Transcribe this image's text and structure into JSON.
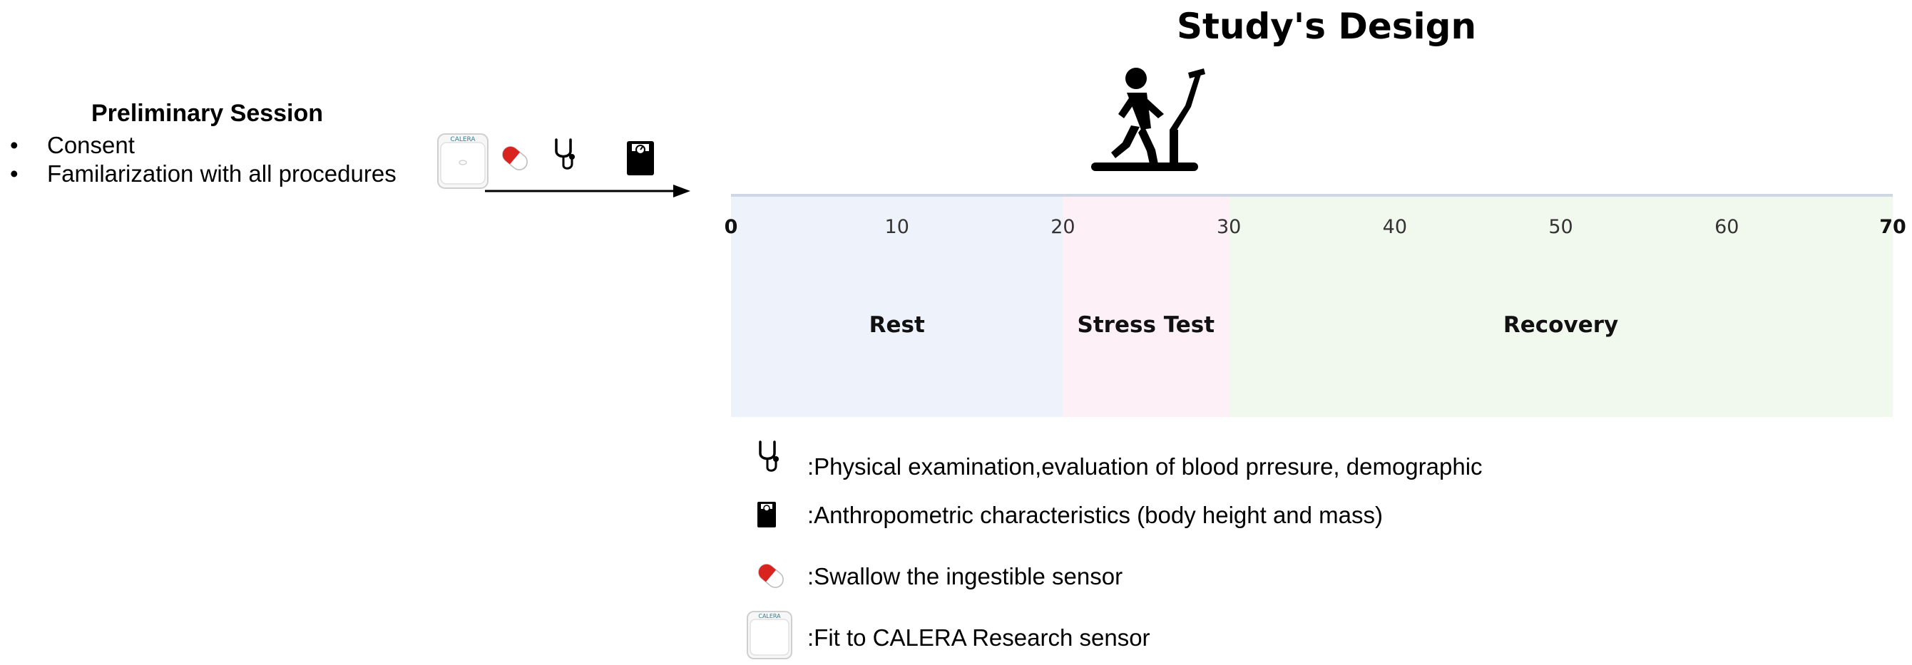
{
  "title": "Study's Design",
  "preliminary": {
    "title": "Preliminary Session",
    "items": [
      "Consent",
      "Familarization with all procedures"
    ]
  },
  "device_label": "CALERA",
  "chart_data": {
    "type": "timeline",
    "ticks": [
      0,
      10,
      20,
      30,
      40,
      50,
      60,
      70
    ],
    "tick_labels": [
      "0",
      "10",
      "20",
      "30",
      "40",
      "50",
      "60",
      "70"
    ],
    "range": [
      0,
      70
    ],
    "phases": [
      {
        "label": "Rest",
        "start": 0,
        "end": 20,
        "color": "#eef3fb"
      },
      {
        "label": "Stress Test",
        "start": 20,
        "end": 30,
        "color": "#fdf0f6"
      },
      {
        "label": "Recovery",
        "start": 30,
        "end": 70,
        "color": "#f1f8ee"
      }
    ]
  },
  "legend": [
    {
      "icon": "stethoscope-icon",
      "text": ":Physical examination,evaluation of blood prresure, demographic"
    },
    {
      "icon": "scale-icon",
      "text": ":Anthropometric characteristics (body height and mass)"
    },
    {
      "icon": "pill-icon",
      "text": ":Swallow the ingestible sensor"
    },
    {
      "icon": "calera-sensor-icon",
      "text": ":Fit to CALERA Research sensor"
    }
  ],
  "colors": {
    "rest": "#eef3fb",
    "stress": "#fdf0f6",
    "recovery": "#f1f8ee",
    "pill_red": "#d9231f",
    "device_text": "#3a7b8f"
  }
}
